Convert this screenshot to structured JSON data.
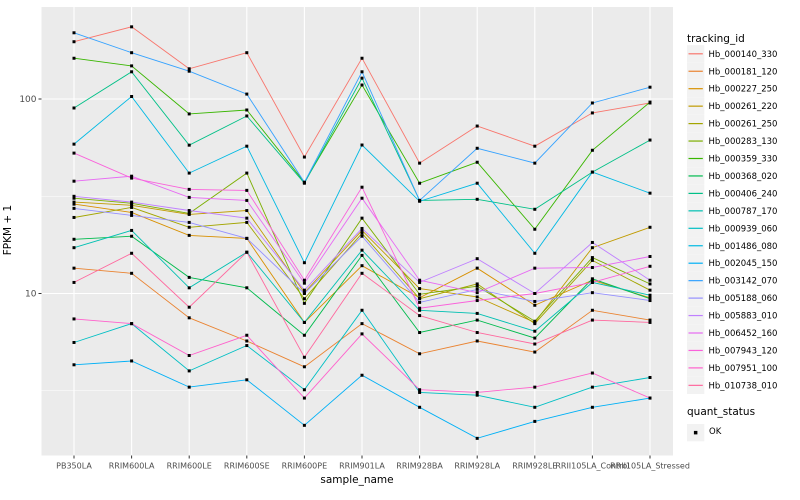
{
  "chart": {
    "y_axis_title": "FPKM + 1",
    "x_axis_title": "sample_name",
    "legend_title": "tracking_id",
    "quant_legend_title": "quant_status",
    "quant_legend_item": "OK",
    "panel_bg_color": "#EBEBEB",
    "grid_color": "#FFFFFF",
    "tick_label_color": "#4D4D4D",
    "marker_color": "#000000",
    "legend_key_bg": "#F2F2F2"
  },
  "chart_data": {
    "type": "line",
    "y_scale": "log10",
    "ylabel": "FPKM + 1",
    "xlabel": "sample_name",
    "title": "",
    "ylim": [
      1.45,
      290
    ],
    "y_ticks": [
      {
        "value": 10,
        "label": "10"
      },
      {
        "value": 100,
        "label": "100"
      }
    ],
    "grid": true,
    "legend_position": "right",
    "point_marker": "filled-square",
    "quant_status": "OK",
    "categories": [
      "PB350LA",
      "RRIM600LA",
      "RRIM600LE",
      "RRIM600SE",
      "RRIM600PE",
      "RRIM901LA",
      "RRIM928BA",
      "RRIM928LA",
      "RRIM928LE",
      "RRII105LA_Control",
      "RRII105LA_Stressed"
    ],
    "series": [
      {
        "name": "Hb_000140_330",
        "color": "#F8766D",
        "values": [
          197,
          235,
          143,
          173,
          50.3,
          162,
          46.8,
          72.6,
          57.2,
          84.8,
          95.4
        ]
      },
      {
        "name": "Hb_000181_120",
        "color": "#EA8331",
        "values": [
          13.5,
          12.7,
          7.5,
          5.7,
          4.2,
          7.0,
          4.9,
          5.7,
          5.0,
          8.2,
          7.3
        ]
      },
      {
        "name": "Hb_000227_250",
        "color": "#D89000",
        "values": [
          28.8,
          26.1,
          19.9,
          19.2,
          7.1,
          13.9,
          9.5,
          13.5,
          8.7,
          11.7,
          9.5
        ]
      },
      {
        "name": "Hb_000261_220",
        "color": "#C09B00",
        "values": [
          29.5,
          28.4,
          25.5,
          26.7,
          10.1,
          21.1,
          10.6,
          9.6,
          7.1,
          17.2,
          21.9
        ]
      },
      {
        "name": "Hb_000261_250",
        "color": "#A3A500",
        "values": [
          24.6,
          27.7,
          21.9,
          23.2,
          9.4,
          20.4,
          9.4,
          11.2,
          7.0,
          14.8,
          10.4
        ]
      },
      {
        "name": "Hb_000283_130",
        "color": "#7CAE00",
        "values": [
          30.9,
          29.1,
          25.8,
          41.6,
          8.9,
          24.4,
          9.9,
          10.9,
          7.2,
          15.3,
          11.2
        ]
      },
      {
        "name": "Hb_000359_330",
        "color": "#39B600",
        "values": [
          162,
          148,
          83.8,
          87.8,
          37.3,
          118,
          36.9,
          47.3,
          21.4,
          54.5,
          96.4
        ]
      },
      {
        "name": "Hb_000368_020",
        "color": "#00BB4E",
        "values": [
          19.0,
          19.7,
          12.1,
          10.7,
          6.1,
          15.7,
          6.3,
          7.3,
          5.9,
          11.9,
          9.4
        ]
      },
      {
        "name": "Hb_000406_240",
        "color": "#00C087",
        "values": [
          89.9,
          138,
          57.9,
          81.8,
          36.9,
          128,
          30.1,
          30.5,
          27.1,
          42.1,
          61.5
        ]
      },
      {
        "name": "Hb_000787_170",
        "color": "#00C0B2",
        "values": [
          17.2,
          21.1,
          10.7,
          16.3,
          7.1,
          16.7,
          8.2,
          7.9,
          6.4,
          11.4,
          9.8
        ]
      },
      {
        "name": "Hb_000939_060",
        "color": "#00BFC4",
        "values": [
          5.6,
          7.0,
          4.0,
          5.4,
          3.2,
          8.2,
          3.1,
          3.0,
          2.6,
          3.3,
          3.7
        ]
      },
      {
        "name": "Hb_001486_080",
        "color": "#00B9E3",
        "values": [
          58.6,
          103,
          41.6,
          57.2,
          14.4,
          58.0,
          29.8,
          36.9,
          16.1,
          42.1,
          32.8
        ]
      },
      {
        "name": "Hb_002045_150",
        "color": "#00B0F6",
        "values": [
          4.3,
          4.5,
          3.3,
          3.6,
          2.1,
          3.8,
          2.6,
          1.8,
          2.2,
          2.6,
          2.9
        ]
      },
      {
        "name": "Hb_003142_070",
        "color": "#35A2FF",
        "values": [
          219,
          173,
          139,
          106,
          37.3,
          138,
          30.1,
          55.8,
          46.8,
          95.4,
          115
        ]
      },
      {
        "name": "Hb_005188_060",
        "color": "#9590FF",
        "values": [
          27.4,
          25.2,
          23.2,
          19.2,
          10.0,
          19.7,
          9.0,
          10.5,
          9.1,
          10.1,
          9.2
        ]
      },
      {
        "name": "Hb_005883_010",
        "color": "#BF80FF",
        "values": [
          31.6,
          29.5,
          26.7,
          24.4,
          10.4,
          21.6,
          11.4,
          15.1,
          10.0,
          18.3,
          11.7
        ]
      },
      {
        "name": "Hb_006452_160",
        "color": "#E76BF3",
        "values": [
          37.8,
          40.1,
          31.2,
          30.1,
          11.3,
          30.9,
          11.7,
          10.1,
          13.5,
          13.6,
          15.5
        ]
      },
      {
        "name": "Hb_007943_120",
        "color": "#FA62DB",
        "values": [
          52.7,
          39.2,
          34.3,
          33.9,
          11.7,
          35.2,
          8.4,
          9.2,
          10.0,
          11.4,
          13.8
        ]
      },
      {
        "name": "Hb_007951_100",
        "color": "#FF61CC",
        "values": [
          7.4,
          7.0,
          4.8,
          6.1,
          2.9,
          6.2,
          3.2,
          3.1,
          3.3,
          3.9,
          2.9
        ]
      },
      {
        "name": "Hb_010738_010",
        "color": "#FF689E",
        "values": [
          11.4,
          16.1,
          8.5,
          16.3,
          4.7,
          12.7,
          7.7,
          6.3,
          5.5,
          7.3,
          7.1
        ]
      }
    ]
  }
}
